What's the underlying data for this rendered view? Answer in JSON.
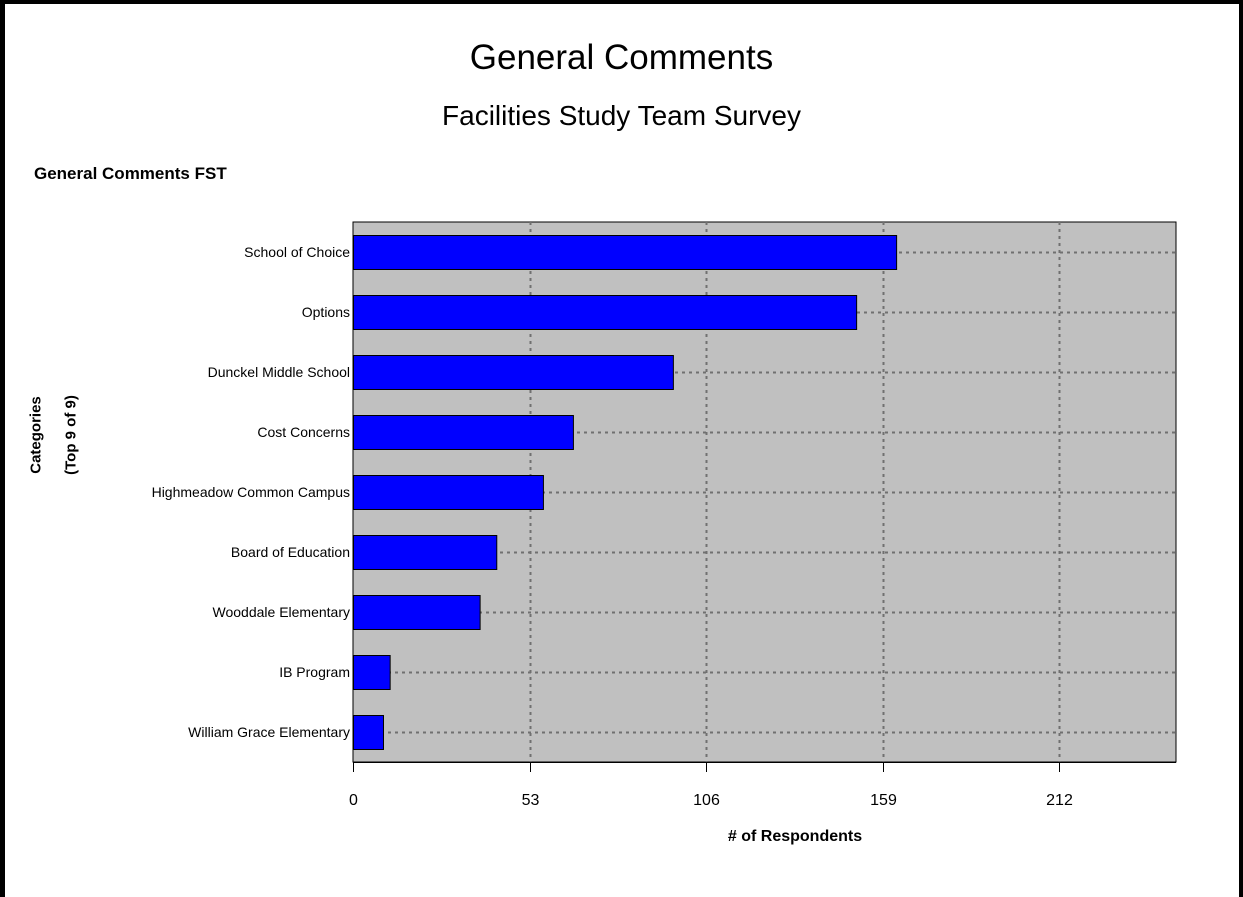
{
  "chart_data": {
    "type": "bar",
    "orientation": "horizontal",
    "title": "General Comments",
    "subtitle": "Facilities Study Team Survey",
    "section_label": "General Comments FST",
    "ylabel_lines": [
      "Categories",
      "(Top 9 of 9)"
    ],
    "xlabel": "# of Respondents",
    "categories": [
      "School of Choice",
      "Options",
      "Dunckel Middle School",
      "Cost Concerns",
      "Highmeadow Common Campus",
      "Board of Education",
      "Wooddale Elementary",
      "IB Program",
      "William Grace Elementary"
    ],
    "values": [
      163,
      151,
      96,
      66,
      57,
      43,
      38,
      11,
      9
    ],
    "xticks": [
      0,
      53,
      106,
      159,
      212
    ],
    "xlim": [
      0,
      247
    ],
    "grid": true,
    "colors": {
      "bar": "#0000FF",
      "plot_background": "#C0C0C0",
      "grid": "#707070"
    }
  }
}
